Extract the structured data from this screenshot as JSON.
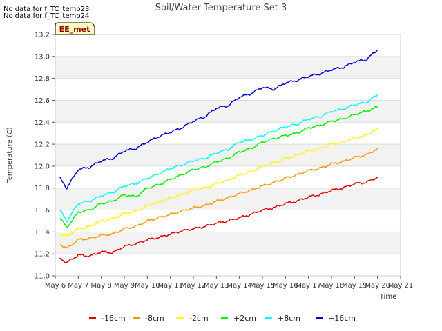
{
  "notes": [
    "No data for f_TC_temp23",
    "No data for f_TC_temp24"
  ],
  "badge": "EE_met",
  "chart_data": {
    "type": "line",
    "title": "Soil/Water Temperature Set 3",
    "xlabel": "Time",
    "ylabel": "Temperature (C)",
    "xlim": [
      6,
      21
    ],
    "ylim": [
      11.0,
      13.2
    ],
    "x_ticks": [
      6,
      7,
      8,
      9,
      10,
      11,
      12,
      13,
      14,
      15,
      16,
      17,
      18,
      19,
      20,
      21
    ],
    "x_tick_labels": [
      "May 6",
      "May 7",
      "May 8",
      "May 9",
      "May 10",
      "May 11",
      "May 12",
      "May 13",
      "May 14",
      "May 15",
      "May 16",
      "May 17",
      "May 18",
      "May 19",
      "May 20",
      "May 21"
    ],
    "y_ticks": [
      11.0,
      11.2,
      11.4,
      11.6,
      11.8,
      12.0,
      12.2,
      12.4,
      12.6,
      12.8,
      13.0,
      13.2
    ],
    "y_tick_labels": [
      "11.0",
      "11.2",
      "11.4",
      "11.6",
      "11.8",
      "12.0",
      "12.2",
      "12.4",
      "12.6",
      "12.8",
      "13.0",
      "13.2"
    ],
    "grid": true,
    "legend_position": "bottom",
    "x": [
      6.2,
      6.5,
      7.0,
      7.5,
      8.0,
      8.5,
      9.0,
      9.5,
      10.0,
      10.5,
      11.0,
      11.5,
      12.0,
      12.5,
      13.0,
      13.5,
      14.0,
      14.5,
      15.0,
      15.5,
      16.0,
      16.5,
      17.0,
      17.5,
      18.0,
      18.5,
      19.0,
      19.5,
      20.0
    ],
    "series": [
      {
        "name": "-16cm",
        "color": "#dd0000",
        "values": [
          11.16,
          11.12,
          11.19,
          11.18,
          11.22,
          11.21,
          11.27,
          11.29,
          11.33,
          11.35,
          11.38,
          11.41,
          11.43,
          11.45,
          11.48,
          11.5,
          11.53,
          11.56,
          11.6,
          11.62,
          11.66,
          11.68,
          11.72,
          11.74,
          11.78,
          11.8,
          11.84,
          11.85,
          11.9
        ]
      },
      {
        "name": "-8cm",
        "color": "#ff9900",
        "values": [
          11.29,
          11.25,
          11.33,
          11.34,
          11.37,
          11.38,
          11.43,
          11.45,
          11.5,
          11.53,
          11.56,
          11.59,
          11.62,
          11.64,
          11.68,
          11.71,
          11.75,
          11.78,
          11.82,
          11.85,
          11.89,
          11.92,
          11.96,
          11.98,
          12.02,
          12.04,
          12.08,
          12.1,
          12.16
        ]
      },
      {
        "name": "-2cm",
        "color": "#ffff00",
        "values": [
          11.38,
          11.36,
          11.43,
          11.45,
          11.5,
          11.52,
          11.57,
          11.59,
          11.64,
          11.67,
          11.71,
          11.74,
          11.78,
          11.8,
          11.84,
          11.87,
          11.92,
          11.95,
          12.0,
          12.03,
          12.07,
          12.1,
          12.14,
          12.16,
          12.2,
          12.22,
          12.26,
          12.28,
          12.34
        ]
      },
      {
        "name": "+2cm",
        "color": "#00ee00",
        "values": [
          11.53,
          11.44,
          11.58,
          11.6,
          11.66,
          11.68,
          11.74,
          11.72,
          11.8,
          11.83,
          11.88,
          11.92,
          11.97,
          11.99,
          12.04,
          12.07,
          12.13,
          12.16,
          12.22,
          12.25,
          12.28,
          12.3,
          12.35,
          12.37,
          12.41,
          12.43,
          12.47,
          12.5,
          12.54
        ]
      },
      {
        "name": "+8cm",
        "color": "#00ffff",
        "values": [
          11.6,
          11.5,
          11.66,
          11.68,
          11.73,
          11.76,
          11.82,
          11.84,
          11.89,
          11.93,
          11.98,
          12.01,
          12.05,
          12.07,
          12.12,
          12.15,
          12.22,
          12.24,
          12.28,
          12.32,
          12.36,
          12.38,
          12.43,
          12.45,
          12.5,
          12.52,
          12.56,
          12.58,
          12.65
        ]
      },
      {
        "name": "+16cm",
        "color": "#0000cc",
        "values": [
          11.89,
          11.8,
          11.97,
          11.99,
          12.05,
          12.07,
          12.14,
          12.16,
          12.22,
          12.27,
          12.31,
          12.35,
          12.41,
          12.45,
          12.53,
          12.55,
          12.63,
          12.66,
          12.72,
          12.7,
          12.76,
          12.78,
          12.82,
          12.84,
          12.88,
          12.9,
          12.95,
          12.97,
          13.06
        ]
      }
    ]
  }
}
